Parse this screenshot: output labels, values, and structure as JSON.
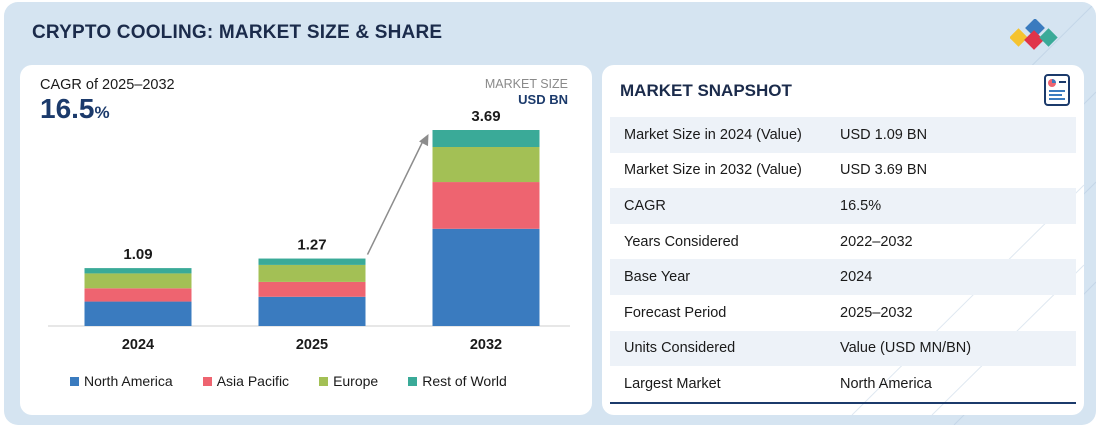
{
  "title": "CRYPTO COOLING: MARKET SIZE & SHARE",
  "cagr": {
    "label": "CAGR of 2025–2032",
    "value": "16.5",
    "unit": "%"
  },
  "unit": {
    "label": "MARKET SIZE",
    "value": "USD BN"
  },
  "colors": {
    "north_america": "#3a7bbf",
    "asia_pacific": "#ee6470",
    "europe": "#a3c055",
    "rest_of_world": "#3aaa98",
    "title": "#1b2b4b",
    "accent": "#1b3a6b"
  },
  "chart_data": {
    "type": "bar",
    "stacked": true,
    "categories": [
      "2024",
      "2025",
      "2032"
    ],
    "totals": [
      1.09,
      1.27,
      3.69
    ],
    "total_labels": [
      "1.09",
      "1.27",
      "3.69"
    ],
    "series": [
      {
        "name": "North America",
        "values": [
          0.46,
          0.55,
          1.83
        ],
        "color": "#3a7bbf"
      },
      {
        "name": "Asia Pacific",
        "values": [
          0.25,
          0.28,
          0.88
        ],
        "color": "#ee6470"
      },
      {
        "name": "Europe",
        "values": [
          0.28,
          0.32,
          0.66
        ],
        "color": "#a3c055"
      },
      {
        "name": "Rest of World",
        "values": [
          0.1,
          0.12,
          0.32
        ],
        "color": "#3aaa98"
      }
    ],
    "ylim": [
      0,
      3.69
    ],
    "xlabel": "",
    "ylabel": "",
    "legend": "bottom",
    "annotation": "growth arrow from 2025 to 2032"
  },
  "snapshot": {
    "title": "MARKET SNAPSHOT",
    "rows": [
      {
        "key": "Market Size in 2024 (Value)",
        "value": "USD 1.09 BN"
      },
      {
        "key": "Market Size in 2032 (Value)",
        "value": "USD 3.69 BN"
      },
      {
        "key": "CAGR",
        "value": "16.5%"
      },
      {
        "key": "Years Considered",
        "value": "2022–2032"
      },
      {
        "key": "Base Year",
        "value": "2024"
      },
      {
        "key": "Forecast Period",
        "value": "2025–2032"
      },
      {
        "key": "Units Considered",
        "value": "Value (USD MN/BN)"
      },
      {
        "key": "Largest Market",
        "value": "North America"
      }
    ]
  }
}
